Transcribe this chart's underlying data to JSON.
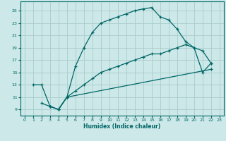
{
  "xlabel": "Humidex (Indice chaleur)",
  "bg_color": "#cce8e8",
  "grid_color": "#aacccc",
  "line_color": "#006666",
  "xlim": [
    -0.5,
    23.5
  ],
  "ylim": [
    8.0,
    26.5
  ],
  "xticks": [
    0,
    1,
    2,
    3,
    4,
    5,
    6,
    7,
    8,
    9,
    10,
    11,
    12,
    13,
    14,
    15,
    16,
    17,
    18,
    19,
    20,
    21,
    22,
    23
  ],
  "yticks": [
    9,
    11,
    13,
    15,
    17,
    19,
    21,
    23,
    25
  ],
  "line1_x": [
    1,
    2,
    3,
    4,
    5,
    6,
    7,
    8,
    9,
    10,
    11,
    12,
    13,
    14,
    15,
    16,
    17,
    18,
    19,
    20,
    21,
    22
  ],
  "line1_y": [
    13,
    13,
    9.5,
    9,
    11,
    16,
    19,
    21.5,
    23,
    23.5,
    24,
    24.5,
    25,
    25.3,
    25.5,
    24,
    23.5,
    22,
    20,
    19,
    18.5,
    16.5
  ],
  "line2_x": [
    3,
    4,
    5,
    6,
    7,
    8,
    9,
    10,
    11,
    12,
    13,
    14,
    15,
    16,
    17,
    18,
    19,
    20,
    21,
    22
  ],
  "line2_y": [
    9.5,
    9,
    11,
    12,
    13,
    14,
    15,
    15.5,
    16,
    16.5,
    17,
    17.5,
    18,
    18,
    18.5,
    19,
    19.5,
    19,
    15,
    16.5
  ],
  "line3_x": [
    2,
    3,
    4,
    5,
    22
  ],
  "line3_y": [
    10,
    9.5,
    9,
    11,
    15.5
  ]
}
